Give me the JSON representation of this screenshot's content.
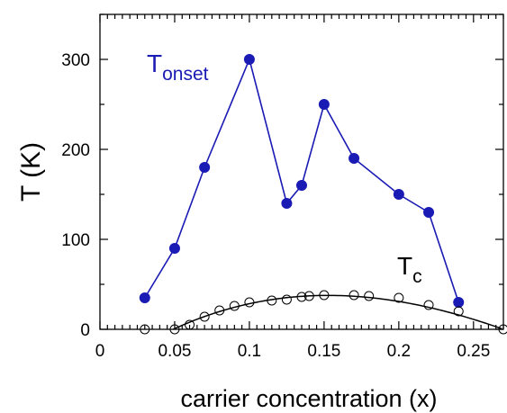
{
  "chart_data": {
    "type": "line",
    "xlabel": "carrier concentration (x)",
    "ylabel": "T (K)",
    "xlim": [
      0,
      0.27
    ],
    "ylim": [
      0,
      350
    ],
    "x_ticks": [
      "0",
      "0.05",
      "0.1",
      "0.15",
      "0.2",
      "0.25"
    ],
    "x_tick_values": [
      0,
      0.05,
      0.1,
      0.15,
      0.2,
      0.25
    ],
    "y_ticks": [
      "0",
      "100",
      "200",
      "300"
    ],
    "y_tick_values": [
      0,
      100,
      200,
      300
    ],
    "grid": false,
    "series": [
      {
        "name": "T_onset",
        "label_main": "T",
        "label_sub": "onset",
        "color": "#1a1ab4",
        "marker": "filled-circle",
        "x": [
          0.03,
          0.05,
          0.07,
          0.1,
          0.125,
          0.135,
          0.15,
          0.17,
          0.2,
          0.22,
          0.24
        ],
        "y": [
          35,
          90,
          180,
          300,
          140,
          160,
          250,
          190,
          150,
          130,
          30
        ]
      },
      {
        "name": "T_c",
        "label_main": "T",
        "label_sub": "c",
        "color": "#000000",
        "marker": "open-circle",
        "fit_curve": true,
        "x": [
          0.03,
          0.05,
          0.06,
          0.07,
          0.08,
          0.09,
          0.1,
          0.115,
          0.125,
          0.135,
          0.14,
          0.15,
          0.17,
          0.18,
          0.2,
          0.22,
          0.24,
          0.27
        ],
        "y": [
          0,
          0,
          5,
          14,
          21,
          26,
          30,
          32,
          33,
          36,
          37,
          38,
          38,
          37,
          35,
          27,
          20,
          0
        ]
      }
    ]
  }
}
